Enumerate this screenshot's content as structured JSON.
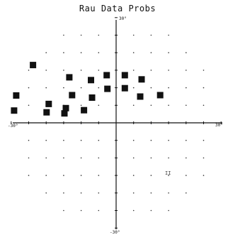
{
  "chart_data": {
    "type": "scatter",
    "title": "Rau Data Probs",
    "xlabel": "",
    "ylabel": "",
    "xlim": [
      -30,
      30
    ],
    "ylim": [
      -30,
      30
    ],
    "grid": "dot grid",
    "marker": "filled square",
    "tick_labels": {
      "top": "30°",
      "bottom": "-30°",
      "left": "-30°",
      "right": "30°"
    },
    "annotation": "II",
    "series": [
      {
        "points": [
          {
            "x": -29.2,
            "y": 3.5
          },
          {
            "x": -28.6,
            "y": 7.8
          },
          {
            "x": -23.8,
            "y": 16.5
          },
          {
            "x": -19.9,
            "y": 3.0
          },
          {
            "x": -19.3,
            "y": 5.4
          },
          {
            "x": -14.8,
            "y": 2.7
          },
          {
            "x": -14.4,
            "y": 4.2
          },
          {
            "x": -13.4,
            "y": 13.0
          },
          {
            "x": -12.6,
            "y": 7.9
          },
          {
            "x": -9.2,
            "y": 3.6
          },
          {
            "x": -7.2,
            "y": 12.2
          },
          {
            "x": -6.9,
            "y": 7.2
          },
          {
            "x": -2.7,
            "y": 13.6
          },
          {
            "x": -2.5,
            "y": 9.7
          },
          {
            "x": 2.5,
            "y": 13.6
          },
          {
            "x": 2.5,
            "y": 9.9
          },
          {
            "x": 6.9,
            "y": 7.5
          },
          {
            "x": 7.3,
            "y": 12.4
          },
          {
            "x": 12.6,
            "y": 7.9
          }
        ]
      }
    ]
  }
}
